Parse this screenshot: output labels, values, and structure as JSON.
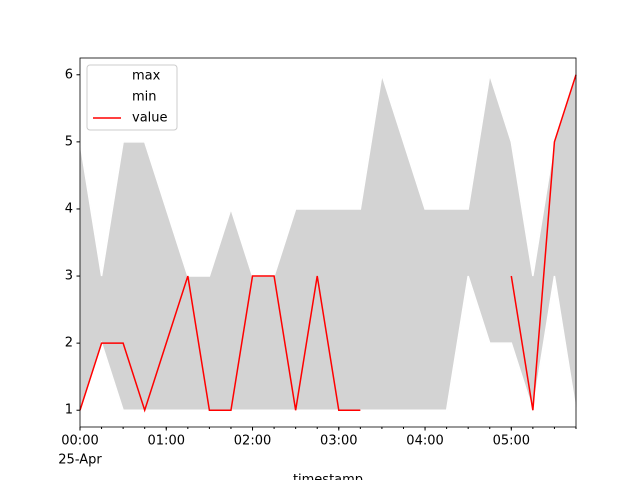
{
  "chart_data": {
    "type": "area_band_line",
    "xlabel": "timestamp",
    "x": [
      "00:00",
      "00:15",
      "00:30",
      "00:45",
      "01:00",
      "01:15",
      "01:30",
      "01:45",
      "02:00",
      "02:15",
      "02:30",
      "02:45",
      "03:00",
      "03:15",
      "03:30",
      "03:45",
      "04:00",
      "04:15",
      "04:30",
      "04:45",
      "05:00",
      "05:15",
      "05:30",
      "05:45"
    ],
    "xlim": [
      "00:00",
      "05:45"
    ],
    "xticks": [
      "00:00",
      "01:00",
      "02:00",
      "03:00",
      "04:00",
      "05:00"
    ],
    "x_date_label": "25-Apr",
    "ylim": [
      0.75,
      6.25
    ],
    "yticks": [
      1,
      2,
      3,
      4,
      5,
      6
    ],
    "fill_color": "#d3d3d3",
    "legend": "upper left",
    "series": [
      {
        "name": "max",
        "color": "#ffffff",
        "values": [
          5,
          3,
          5,
          5,
          4,
          3,
          3,
          4,
          3,
          3,
          4,
          4,
          4,
          4,
          6,
          5,
          4,
          4,
          4,
          6,
          5,
          3,
          5,
          6
        ]
      },
      {
        "name": "min",
        "color": "#ffffff",
        "values": [
          1,
          2,
          1,
          1,
          1,
          1,
          1,
          1,
          1,
          1,
          1,
          1,
          1,
          1,
          1,
          1,
          1,
          1,
          3,
          2,
          2,
          1,
          3,
          1
        ]
      },
      {
        "name": "value",
        "color": "#ff0000",
        "values": [
          1,
          2,
          2,
          1,
          2,
          3,
          1,
          1,
          3,
          3,
          1,
          3,
          1,
          1,
          null,
          null,
          null,
          null,
          null,
          null,
          3,
          1,
          5,
          6
        ]
      }
    ]
  }
}
